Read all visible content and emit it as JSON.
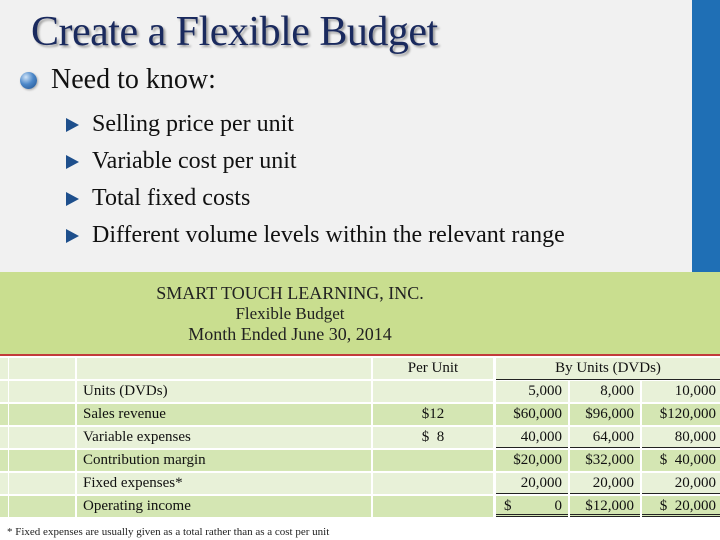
{
  "slide": {
    "title": "Create a Flexible Budget",
    "main_bullet": "Need to know:",
    "sub_bullets": [
      "Selling price per unit",
      "Variable cost per unit",
      "Total fixed costs",
      "Different volume levels within the relevant range"
    ]
  },
  "budget": {
    "company": "SMART TOUCH LEARNING, INC.",
    "report": "Flexible Budget",
    "period": "Month Ended June 30, 2014",
    "col_per_unit": "Per Unit",
    "col_by_units": "By Units (DVDs)",
    "rows": [
      {
        "label": "Units (DVDs)",
        "per_unit": "",
        "v1": "5,000",
        "v2": "8,000",
        "v3": "10,000"
      },
      {
        "label": "Sales revenue",
        "per_unit": "$12",
        "v1": "$60,000",
        "v2": "$96,000",
        "v3": "$120,000"
      },
      {
        "label": "Variable expenses",
        "per_unit": "$  8",
        "v1": "40,000",
        "v2": "64,000",
        "v3": "80,000"
      },
      {
        "label": "Contribution margin",
        "per_unit": "",
        "v1": "$20,000",
        "v2": "$32,000",
        "v3": "$  40,000"
      },
      {
        "label": "Fixed expenses*",
        "per_unit": "",
        "v1": "20,000",
        "v2": "20,000",
        "v3": "20,000"
      },
      {
        "label": "Operating income",
        "per_unit": "",
        "v1_sign": "$",
        "v1": "0",
        "v2": "$12,000",
        "v3": "$  20,000"
      }
    ],
    "footnote": "* Fixed expenses are usually given as a total rather than as a cost per unit"
  },
  "colors": {
    "title": "#1a2a5e",
    "accent_bar": "#1f6fb5",
    "header_green": "#c9de8f",
    "rule_red": "#c23b3b"
  }
}
